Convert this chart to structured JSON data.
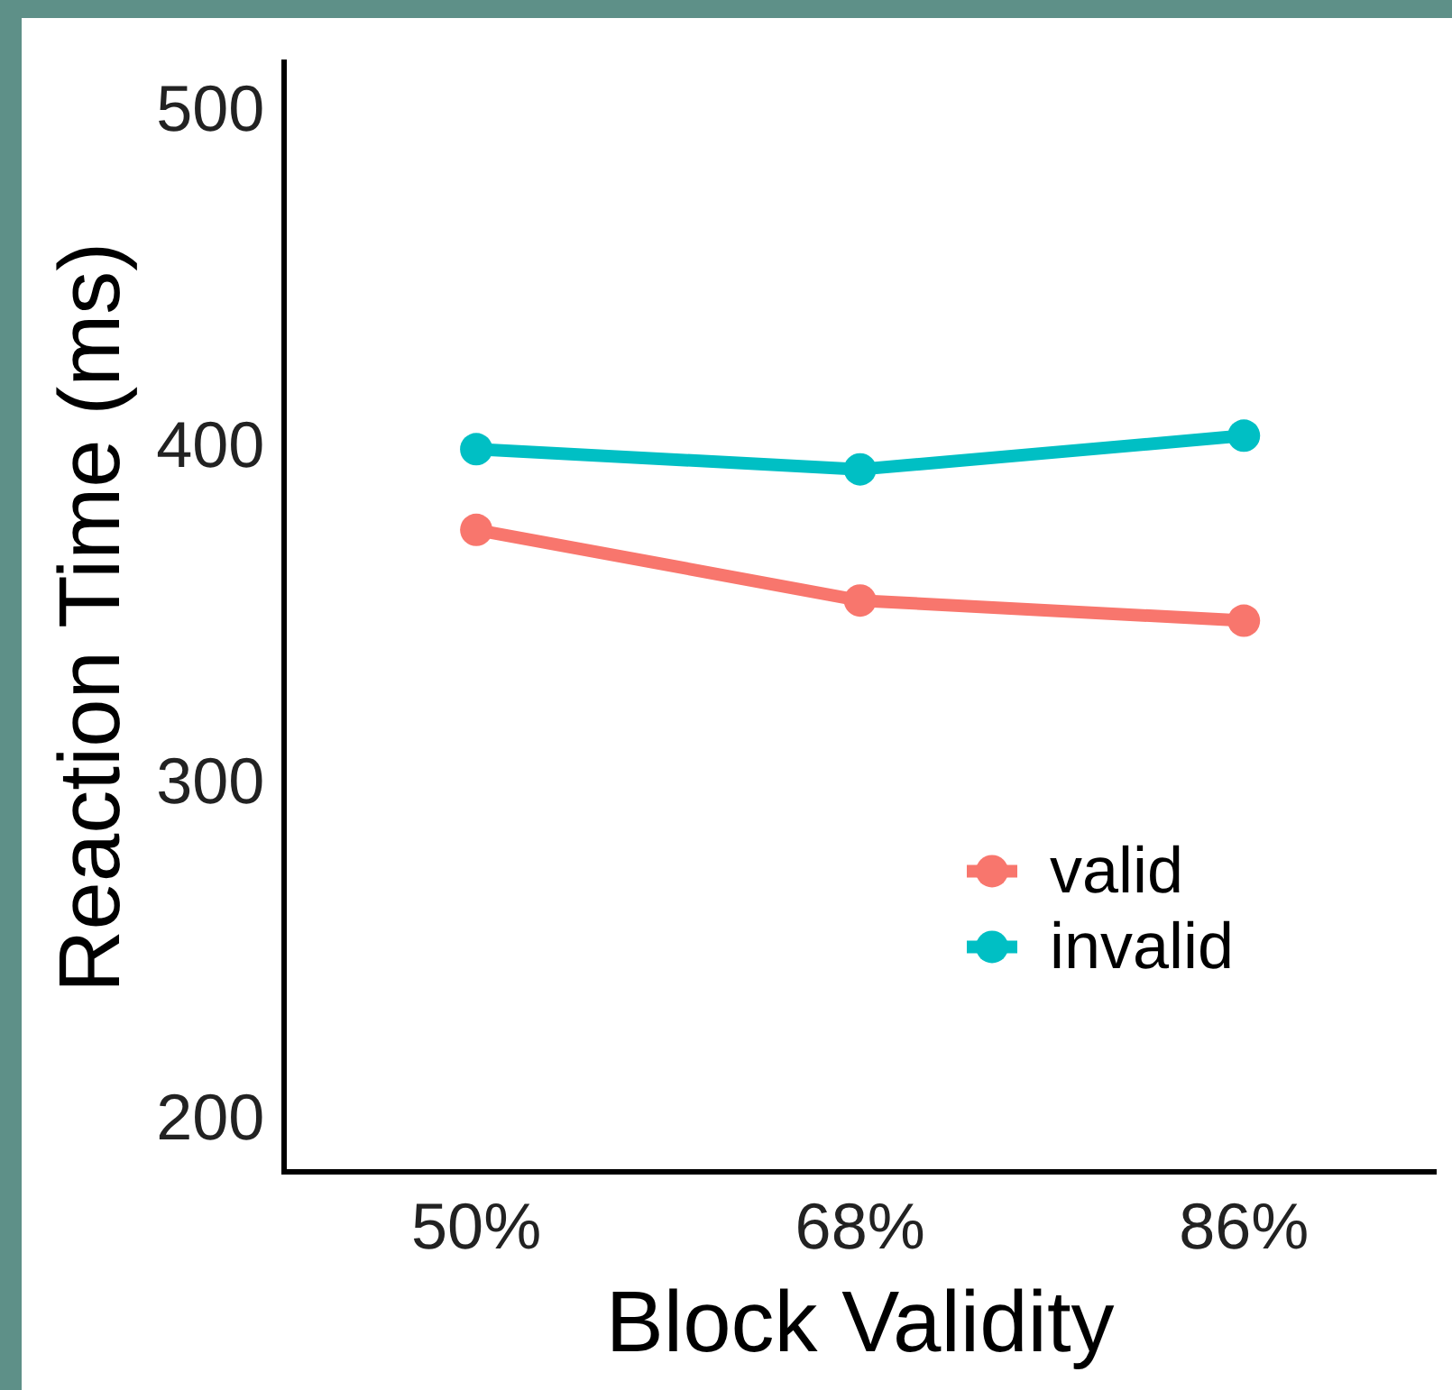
{
  "chart_data": {
    "type": "line",
    "xlabel": "Block Validity",
    "ylabel": "Reaction Time (ms)",
    "categories": [
      "50%",
      "68%",
      "86%"
    ],
    "series": [
      {
        "name": "valid",
        "color": "#f8766d",
        "values": [
          376,
          355,
          349
        ]
      },
      {
        "name": "invalid",
        "color": "#00bfc4",
        "values": [
          400,
          394,
          404
        ]
      }
    ],
    "ylim": [
      185,
      515
    ],
    "yticks": [
      200,
      300,
      400,
      500
    ],
    "grid": false,
    "legend": "bottom right",
    "marker": "circle",
    "line_style": "solid"
  }
}
